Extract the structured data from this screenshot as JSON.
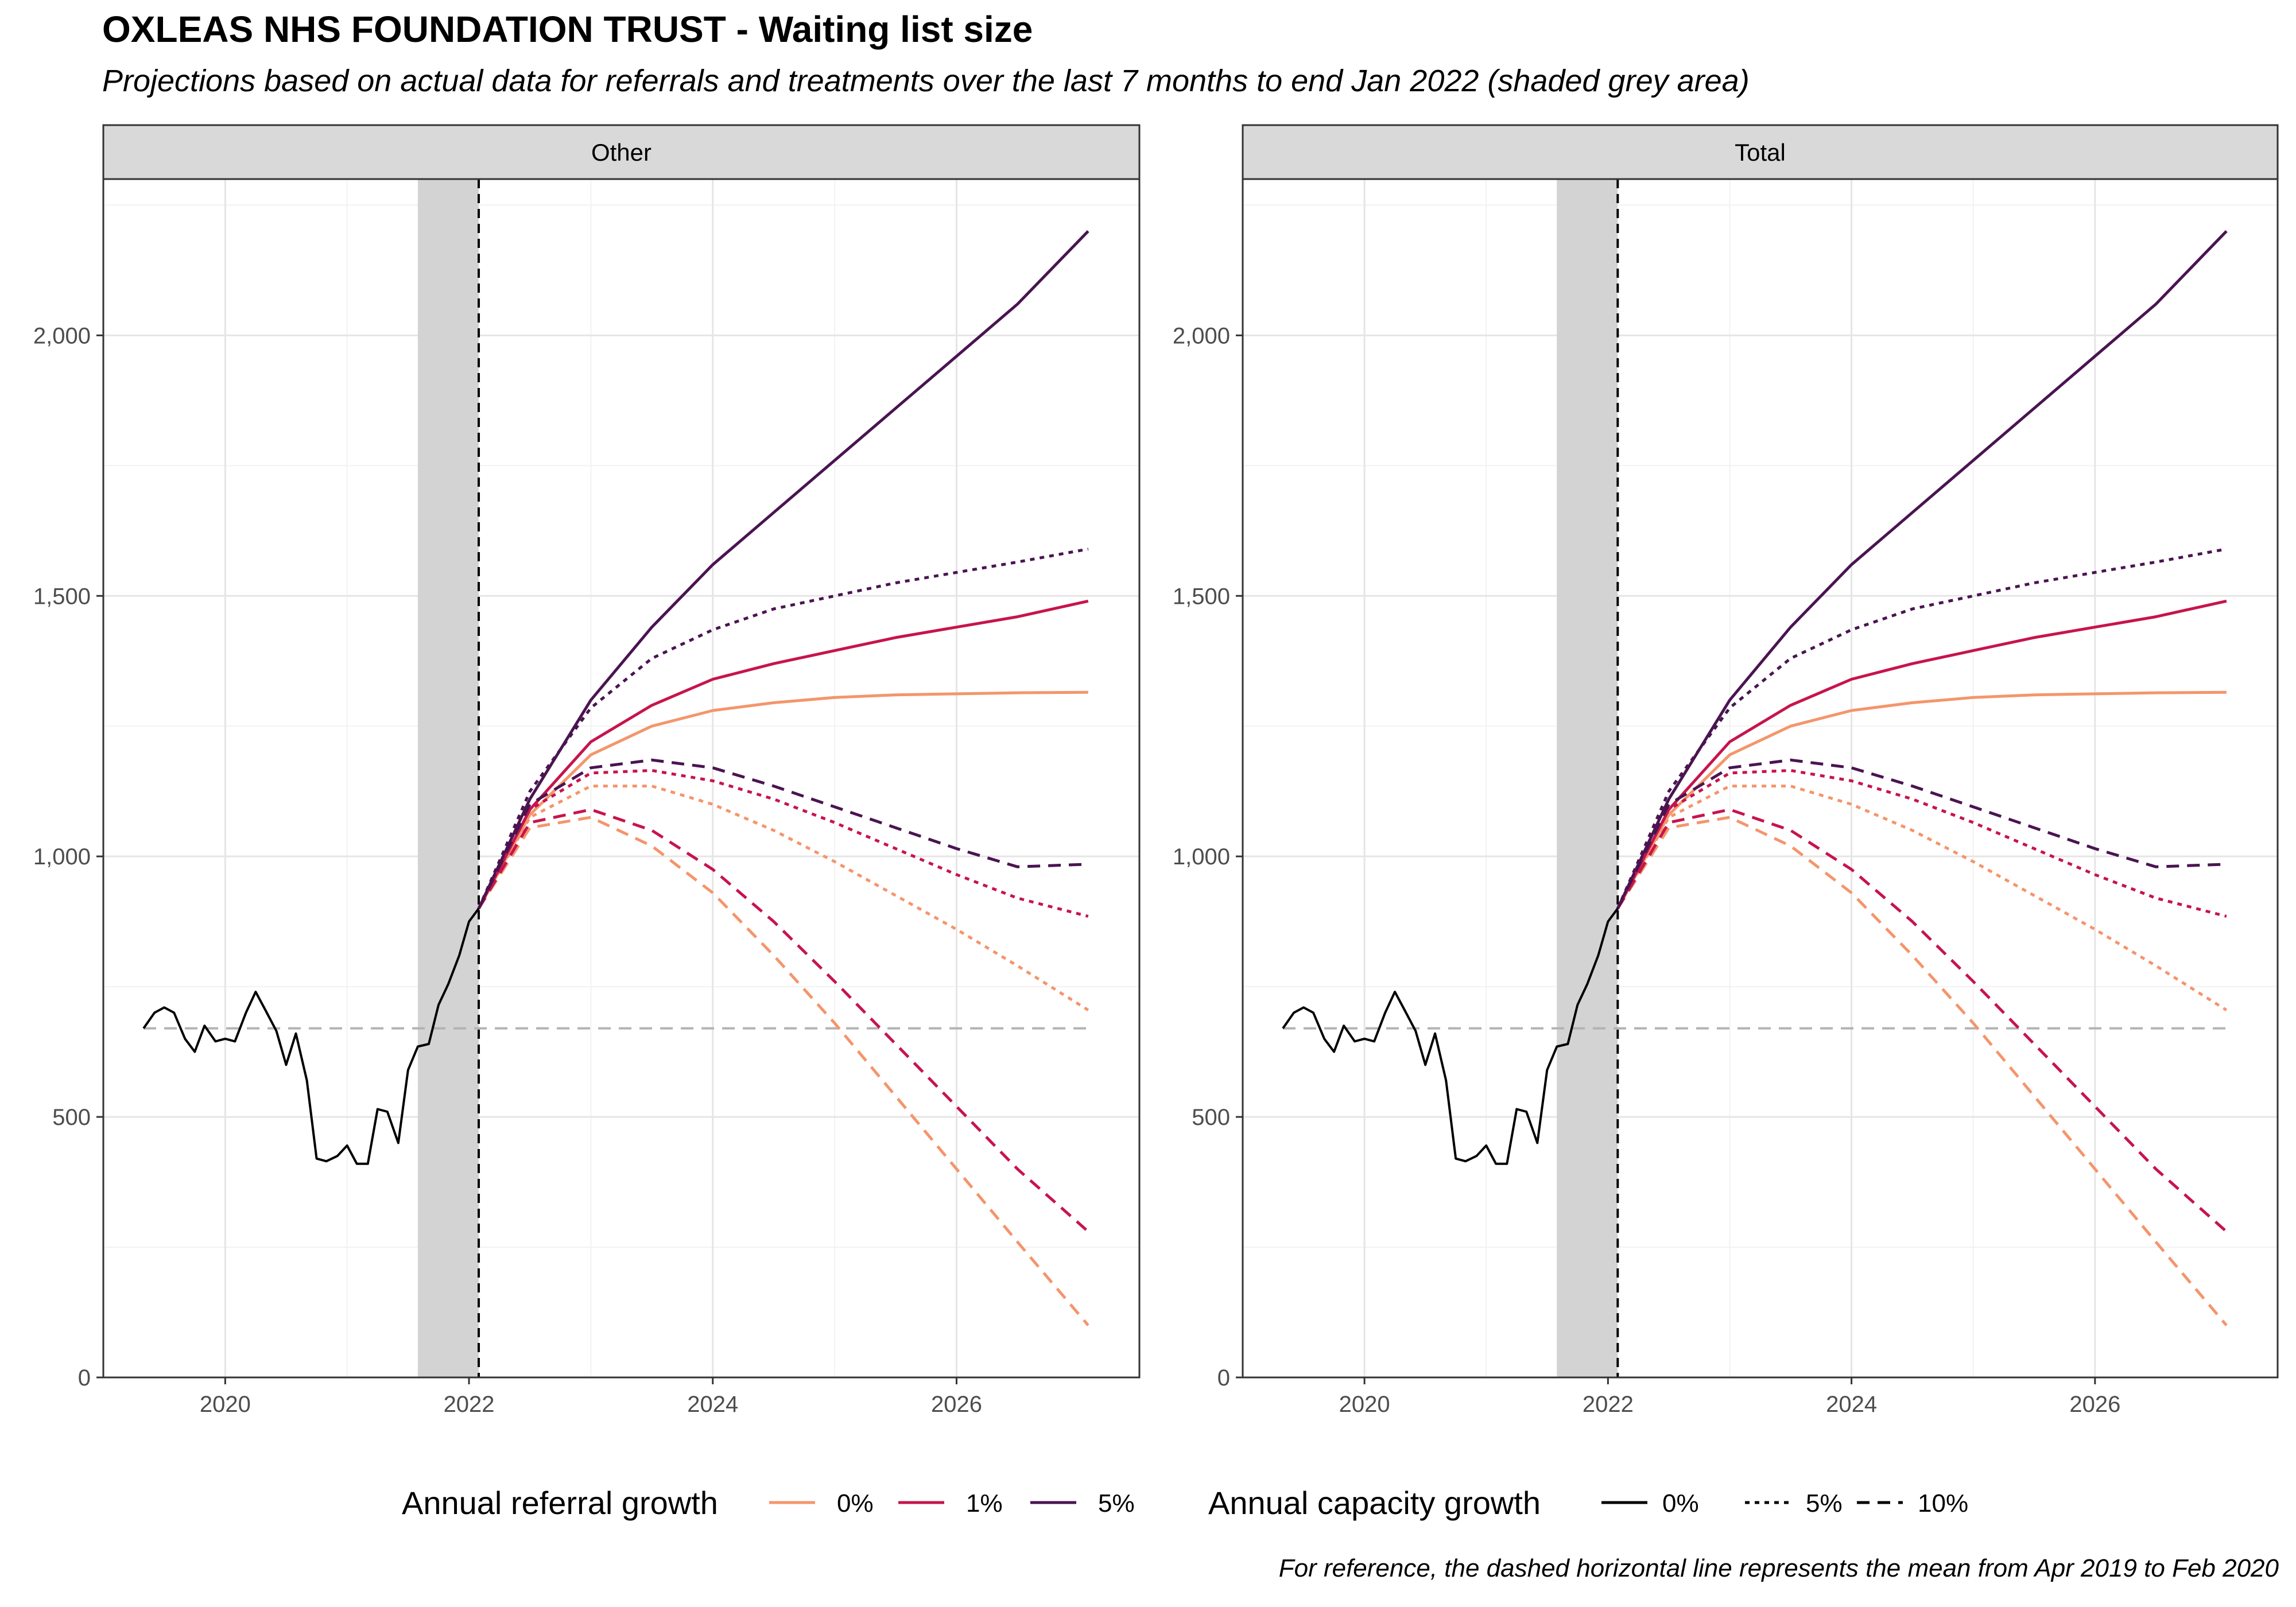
{
  "title": "OXLEAS NHS FOUNDATION TRUST - Waiting list size",
  "subtitle": "Projections based on actual data for referrals and treatments over the last 7 months to end Jan 2022 (shaded grey area)",
  "caption": "For reference, the dashed horizontal line represents the mean from Apr 2019 to Feb 2020",
  "colors": {
    "growth_0": "#F4956B",
    "growth_1": "#C7144C",
    "growth_5": "#4A1451",
    "observed": "#000000",
    "reference": "#B3B3B3",
    "shade": "#D3D3D3",
    "strip_bg": "#D9D9D9"
  },
  "legend": {
    "referral_title": "Annual referral growth",
    "referral_items": [
      "0%",
      "1%",
      "5%"
    ],
    "capacity_title": "Annual capacity growth",
    "capacity_items": [
      "0%",
      "5%",
      "10%"
    ]
  },
  "chart_data": {
    "type": "line",
    "panels": [
      "Other",
      "Total"
    ],
    "xlim": [
      2019.0,
      2027.5
    ],
    "ylim": [
      0,
      2300
    ],
    "x_ticks": [
      2020,
      2022,
      2024,
      2026
    ],
    "x_tick_labels": [
      "2020",
      "2022",
      "2024",
      "2026"
    ],
    "y_ticks": [
      0,
      500,
      1000,
      1500,
      2000
    ],
    "y_tick_labels": [
      "0",
      "500",
      "1,000",
      "1,500",
      "2,000"
    ],
    "grid": true,
    "legend_position": "bottom",
    "shaded_period": [
      2021.58,
      2022.08
    ],
    "projection_start": 2022.08,
    "reference_mean": 670,
    "observed": {
      "x": [
        2019.33,
        2019.42,
        2019.5,
        2019.58,
        2019.67,
        2019.75,
        2019.83,
        2019.92,
        2020.0,
        2020.08,
        2020.17,
        2020.25,
        2020.33,
        2020.42,
        2020.5,
        2020.58,
        2020.67,
        2020.75,
        2020.83,
        2020.92,
        2021.0,
        2021.08,
        2021.17,
        2021.25,
        2021.33,
        2021.42,
        2021.5,
        2021.58,
        2021.67,
        2021.75,
        2021.83,
        2021.92,
        2022.0,
        2022.08
      ],
      "y": [
        670,
        700,
        710,
        700,
        650,
        625,
        675,
        645,
        650,
        645,
        700,
        740,
        705,
        665,
        600,
        660,
        570,
        420,
        415,
        425,
        445,
        410,
        410,
        515,
        510,
        450,
        590,
        635,
        640,
        715,
        755,
        810,
        875,
        900
      ]
    },
    "series": [
      {
        "name": "0% / 0%",
        "referral_growth": "0%",
        "capacity_growth": "0%",
        "x": [
          2022.08,
          2022.5,
          2023,
          2023.5,
          2024,
          2024.5,
          2025,
          2025.5,
          2026,
          2026.5,
          2027.08
        ],
        "y": [
          900,
          1080,
          1195,
          1250,
          1280,
          1295,
          1305,
          1310,
          1312,
          1314,
          1315
        ]
      },
      {
        "name": "1% / 0%",
        "referral_growth": "1%",
        "capacity_growth": "0%",
        "x": [
          2022.08,
          2022.5,
          2023,
          2023.5,
          2024,
          2024.5,
          2025,
          2025.5,
          2026,
          2026.5,
          2027.08
        ],
        "y": [
          900,
          1090,
          1220,
          1290,
          1340,
          1370,
          1395,
          1420,
          1440,
          1460,
          1490
        ]
      },
      {
        "name": "5% / 0%",
        "referral_growth": "5%",
        "capacity_growth": "0%",
        "x": [
          2022.08,
          2022.5,
          2023,
          2023.5,
          2024,
          2024.5,
          2025,
          2025.5,
          2026,
          2026.5,
          2027.08
        ],
        "y": [
          900,
          1110,
          1300,
          1440,
          1560,
          1660,
          1760,
          1860,
          1960,
          2060,
          2200
        ]
      },
      {
        "name": "0% / 5%",
        "referral_growth": "0%",
        "capacity_growth": "5%",
        "x": [
          2022.08,
          2022.5,
          2023,
          2023.5,
          2024,
          2024.5,
          2025,
          2025.5,
          2026,
          2026.5,
          2027.08
        ],
        "y": [
          900,
          1075,
          1135,
          1135,
          1100,
          1050,
          990,
          925,
          860,
          790,
          705
        ]
      },
      {
        "name": "1% / 5%",
        "referral_growth": "1%",
        "capacity_growth": "5%",
        "x": [
          2022.08,
          2022.5,
          2023,
          2023.5,
          2024,
          2024.5,
          2025,
          2025.5,
          2026,
          2026.5,
          2027.08
        ],
        "y": [
          900,
          1090,
          1160,
          1165,
          1145,
          1110,
          1065,
          1015,
          965,
          920,
          885
        ]
      },
      {
        "name": "5% / 5%",
        "referral_growth": "5%",
        "capacity_growth": "5%",
        "x": [
          2022.08,
          2022.5,
          2023,
          2023.5,
          2024,
          2024.5,
          2025,
          2025.5,
          2026,
          2026.5,
          2027.08
        ],
        "y": [
          900,
          1125,
          1285,
          1380,
          1435,
          1475,
          1500,
          1525,
          1545,
          1565,
          1590
        ]
      },
      {
        "name": "0% / 10%",
        "referral_growth": "0%",
        "capacity_growth": "10%",
        "x": [
          2022.08,
          2022.5,
          2023,
          2023.5,
          2024,
          2024.5,
          2025,
          2025.5,
          2026,
          2026.5,
          2027.08
        ],
        "y": [
          900,
          1055,
          1075,
          1020,
          930,
          810,
          680,
          540,
          400,
          260,
          100
        ]
      },
      {
        "name": "1% / 10%",
        "referral_growth": "1%",
        "capacity_growth": "10%",
        "x": [
          2022.08,
          2022.5,
          2023,
          2023.5,
          2024,
          2024.5,
          2025,
          2025.5,
          2026,
          2026.5,
          2027.08
        ],
        "y": [
          900,
          1065,
          1090,
          1050,
          975,
          875,
          760,
          640,
          520,
          400,
          280
        ]
      },
      {
        "name": "5% / 10%",
        "referral_growth": "5%",
        "capacity_growth": "10%",
        "x": [
          2022.08,
          2022.5,
          2023,
          2023.5,
          2024,
          2024.5,
          2025,
          2025.5,
          2026,
          2026.5,
          2027.08
        ],
        "y": [
          900,
          1100,
          1170,
          1185,
          1170,
          1135,
          1095,
          1055,
          1015,
          980,
          985
        ]
      }
    ]
  }
}
